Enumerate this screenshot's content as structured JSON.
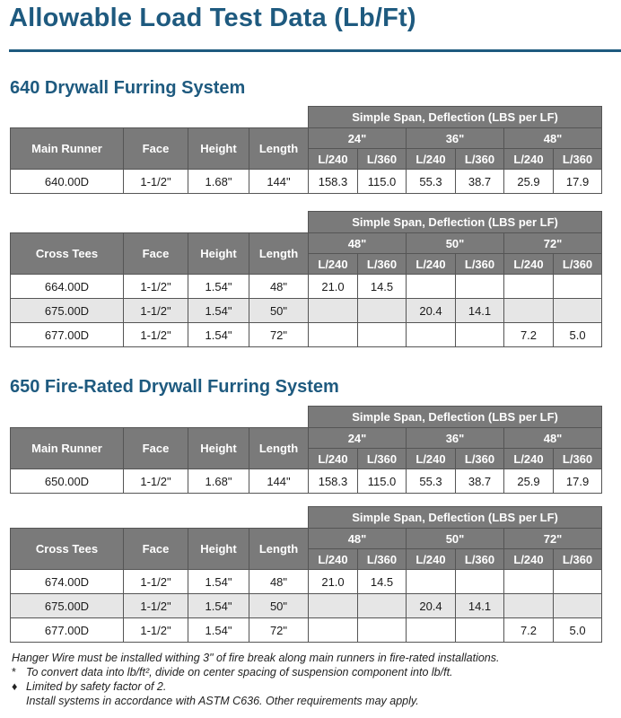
{
  "title": "Allowable Load Test Data (Lb/Ft)",
  "sections": [
    {
      "title": "640 Drywall Furring System"
    },
    {
      "title": "650 Fire-Rated  Drywall Furring System"
    }
  ],
  "tables": [
    {
      "span_header": "Simple Span, Deflection (LBS per LF)",
      "col_headers": [
        "Main Runner",
        "Face",
        "Height",
        "Length"
      ],
      "lengths": [
        "24\"",
        "36\"",
        "48\""
      ],
      "deflections": [
        "L/240",
        "L/360",
        "L/240",
        "L/360",
        "L/240",
        "L/360"
      ],
      "rows": [
        {
          "cells": [
            "640.00D",
            "1-1/2\"",
            "1.68\"",
            "144\"",
            "158.3",
            "115.0",
            "55.3",
            "38.7",
            "25.9",
            "17.9"
          ]
        }
      ]
    },
    {
      "span_header": "Simple Span, Deflection (LBS per LF)",
      "col_headers": [
        "Cross Tees",
        "Face",
        "Height",
        "Length"
      ],
      "lengths": [
        "48\"",
        "50\"",
        "72\""
      ],
      "deflections": [
        "L/240",
        "L/360",
        "L/240",
        "L/360",
        "L/240",
        "L/360"
      ],
      "rows": [
        {
          "cells": [
            "664.00D",
            "1-1/2\"",
            "1.54\"",
            "48\"",
            "21.0",
            "14.5",
            "",
            "",
            "",
            ""
          ]
        },
        {
          "cells": [
            "675.00D",
            "1-1/2\"",
            "1.54\"",
            "50\"",
            "",
            "",
            "20.4",
            "14.1",
            "",
            ""
          ]
        },
        {
          "cells": [
            "677.00D",
            "1-1/2\"",
            "1.54\"",
            "72\"",
            "",
            "",
            "",
            "",
            "7.2",
            "5.0"
          ]
        }
      ]
    },
    {
      "span_header": "Simple Span, Deflection (LBS per LF)",
      "col_headers": [
        "Main Runner",
        "Face",
        "Height",
        "Length"
      ],
      "lengths": [
        "24\"",
        "36\"",
        "48\""
      ],
      "deflections": [
        "L/240",
        "L/360",
        "L/240",
        "L/360",
        "L/240",
        "L/360"
      ],
      "rows": [
        {
          "cells": [
            "650.00D",
            "1-1/2\"",
            "1.68\"",
            "144\"",
            "158.3",
            "115.0",
            "55.3",
            "38.7",
            "25.9",
            "17.9"
          ]
        }
      ]
    },
    {
      "span_header": "Simple Span, Deflection (LBS per LF)",
      "col_headers": [
        "Cross Tees",
        "Face",
        "Height",
        "Length"
      ],
      "lengths": [
        "48\"",
        "50\"",
        "72\""
      ],
      "deflections": [
        "L/240",
        "L/360",
        "L/240",
        "L/360",
        "L/240",
        "L/360"
      ],
      "rows": [
        {
          "cells": [
            "674.00D",
            "1-1/2\"",
            "1.54\"",
            "48\"",
            "21.0",
            "14.5",
            "",
            "",
            "",
            ""
          ]
        },
        {
          "cells": [
            "675.00D",
            "1-1/2\"",
            "1.54\"",
            "50\"",
            "",
            "",
            "20.4",
            "14.1",
            "",
            ""
          ]
        },
        {
          "cells": [
            "677.00D",
            "1-1/2\"",
            "1.54\"",
            "72\"",
            "",
            "",
            "",
            "",
            "7.2",
            "5.0"
          ]
        }
      ]
    }
  ],
  "notes": {
    "line1": "Hanger Wire must be installed withing 3\" of fire break along main runners in fire-rated installations.",
    "star": "*",
    "line2": "To convert data into lb/ft², divide on center spacing of suspension component into lb/ft.",
    "diamond": "♦",
    "line3": "Limited by safety factor of 2.",
    "line4": "Install systems in accordance with ASTM C636. Other requirements may apply."
  }
}
